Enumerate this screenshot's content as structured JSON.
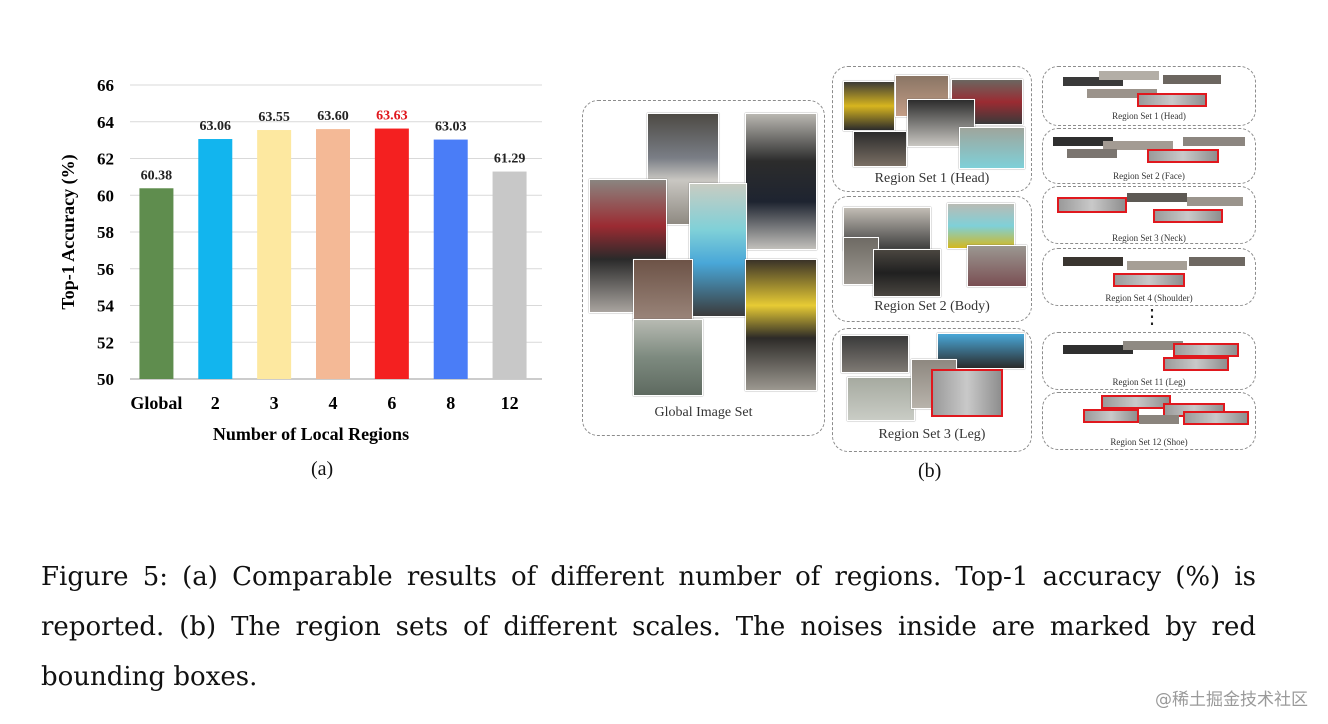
{
  "chart_data": {
    "type": "bar",
    "categories": [
      "Global",
      "2",
      "3",
      "4",
      "6",
      "8",
      "12"
    ],
    "values": [
      60.38,
      63.06,
      63.55,
      63.6,
      63.63,
      63.03,
      61.29
    ],
    "value_labels": [
      "60.38",
      "63.06",
      "63.55",
      "63.60",
      "63.63",
      "63.03",
      "61.29"
    ],
    "colors": [
      "#5f8d4e",
      "#12b5ee",
      "#fde8a0",
      "#f4b996",
      "#f42020",
      "#4a7df7",
      "#c8c8c8"
    ],
    "highlight_label_color": "#e0181e",
    "xlabel": "Number of Local Regions",
    "ylabel": "Top-1 Accuracy (%)",
    "ylim": [
      50,
      66
    ],
    "yticks": [
      "50",
      "52",
      "54",
      "56",
      "58",
      "60",
      "62",
      "64",
      "66"
    ],
    "grid": true
  },
  "figure": {
    "sublabel_a": "(a)",
    "sublabel_b": "(b)",
    "global_set_label": "Global Image Set",
    "mid_sets": [
      "Region Set 1 (Head)",
      "Region Set 2 (Body)",
      "Region Set 3 (Leg)"
    ],
    "right_sets": [
      "Region Set 1 (Head)",
      "Region Set 2 (Face)",
      "Region Set 3 (Neck)",
      "Region Set 4 (Shoulder)",
      "Region Set 11 (Leg)",
      "Region Set 12 (Shoe)"
    ],
    "ellipsis": "⋮"
  },
  "caption": "Figure 5:  (a) Comparable results of different number of regions.  Top-1 accuracy (%) is reported.  (b) The region sets of different scales. The noises inside are marked by red bounding boxes.",
  "watermark": "@稀土掘金技术社区"
}
